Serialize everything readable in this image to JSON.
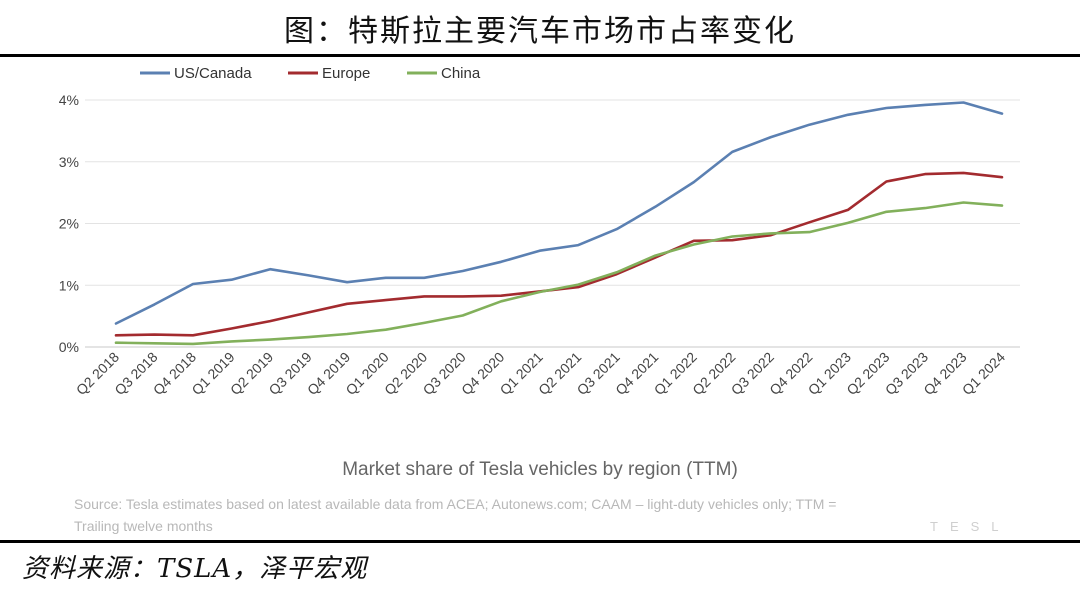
{
  "header": {
    "title": "图：特斯拉主要汽车市场市占率变化"
  },
  "footer": {
    "source": "资料来源：TSLA，泽平宏观"
  },
  "chart_data": {
    "type": "line",
    "subtitle": "Market share of Tesla vehicles by region (TTM)",
    "note_line1": "Source: Tesla estimates based on latest available data from ACEA; Autonews.com; CAAM – light-duty vehicles only; TTM =",
    "note_line2": "Trailing twelve months",
    "watermark": "TESL",
    "legend_position": "top-left",
    "grid": true,
    "ylim": [
      0,
      4
    ],
    "yticks": [
      "0%",
      "1%",
      "2%",
      "3%",
      "4%"
    ],
    "categories": [
      "Q2 2018",
      "Q3 2018",
      "Q4 2018",
      "Q1 2019",
      "Q2 2019",
      "Q3 2019",
      "Q4 2019",
      "Q1 2020",
      "Q2 2020",
      "Q3 2020",
      "Q4 2020",
      "Q1 2021",
      "Q2 2021",
      "Q3 2021",
      "Q4 2021",
      "Q1 2022",
      "Q2 2022",
      "Q3 2022",
      "Q4 2022",
      "Q1 2023",
      "Q2 2023",
      "Q3 2023",
      "Q4 2023",
      "Q1 2024"
    ],
    "series": [
      {
        "name": "US/Canada",
        "color": "#5b80b2",
        "values": [
          0.38,
          0.69,
          1.02,
          1.09,
          1.26,
          1.16,
          1.05,
          1.12,
          1.12,
          1.23,
          1.38,
          1.56,
          1.65,
          1.91,
          2.27,
          2.67,
          3.16,
          3.4,
          3.6,
          3.76,
          3.87,
          3.92,
          3.96,
          3.78
        ]
      },
      {
        "name": "Europe",
        "color": "#a32b2f",
        "values": [
          0.19,
          0.2,
          0.19,
          0.3,
          0.42,
          0.56,
          0.7,
          0.76,
          0.82,
          0.82,
          0.83,
          0.9,
          0.97,
          1.18,
          1.45,
          1.72,
          1.73,
          1.81,
          2.02,
          2.22,
          2.68,
          2.8,
          2.82,
          2.75
        ]
      },
      {
        "name": "China",
        "color": "#82b05b",
        "values": [
          0.07,
          0.06,
          0.05,
          0.09,
          0.12,
          0.16,
          0.21,
          0.28,
          0.39,
          0.51,
          0.74,
          0.89,
          1.01,
          1.21,
          1.48,
          1.66,
          1.79,
          1.84,
          1.86,
          2.01,
          2.19,
          2.25,
          2.34,
          2.29
        ]
      }
    ]
  }
}
